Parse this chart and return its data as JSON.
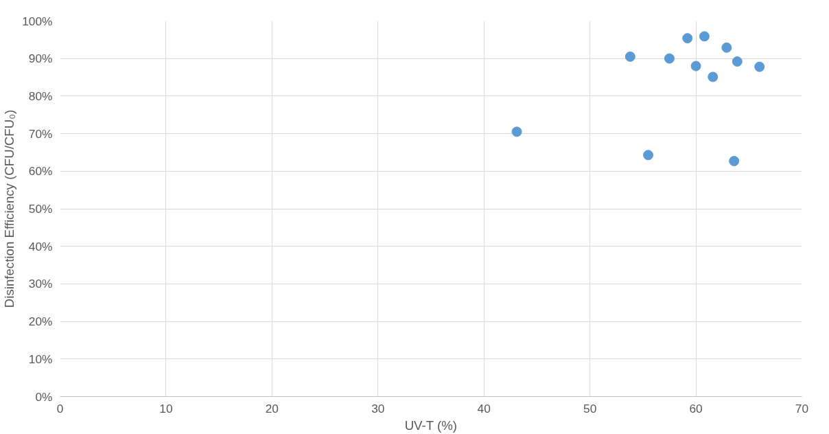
{
  "chart_data": {
    "type": "scatter",
    "xlabel": "UV-T (%)",
    "ylabel": "Disinfection Efficiency (CFU/CFU₀)",
    "x": [
      43.1,
      53.8,
      55.5,
      57.5,
      59.2,
      60.0,
      60.8,
      61.6,
      62.9,
      63.6,
      63.9,
      66.0
    ],
    "series": [
      {
        "color": "#5b9bd5",
        "values": [
          70.5,
          90.5,
          64.3,
          90.0,
          95.4,
          88.0,
          95.9,
          85.1,
          92.9,
          62.7,
          89.2,
          87.8
        ]
      }
    ],
    "xlim": [
      0,
      70
    ],
    "xticks": [
      0,
      10,
      20,
      30,
      40,
      50,
      60,
      70
    ],
    "ylim": [
      0,
      100
    ],
    "yticks": [
      {
        "value": 0,
        "label": "0%"
      },
      {
        "value": 10,
        "label": "10%"
      },
      {
        "value": 20,
        "label": "20%"
      },
      {
        "value": 30,
        "label": "30%"
      },
      {
        "value": 40,
        "label": "40%"
      },
      {
        "value": 50,
        "label": "50%"
      },
      {
        "value": 60,
        "label": "60%"
      },
      {
        "value": 70,
        "label": "70%"
      },
      {
        "value": 80,
        "label": "80%"
      },
      {
        "value": 90,
        "label": "90%"
      },
      {
        "value": 100,
        "label": "100%"
      }
    ],
    "grid": true,
    "marker": "circle"
  }
}
